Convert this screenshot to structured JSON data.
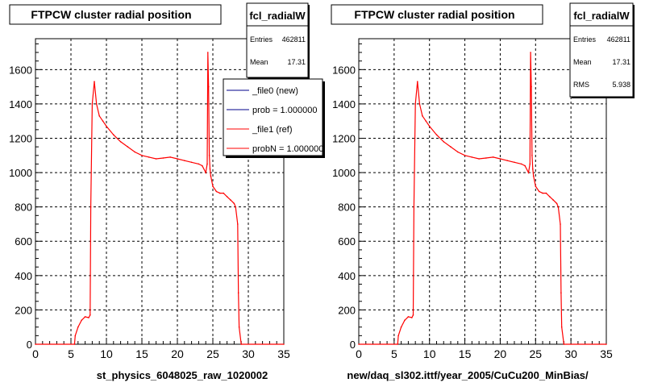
{
  "chart_data": [
    {
      "type": "line",
      "title": "FTPCW cluster radial position",
      "xlabel": "st_physics_6048025_raw_1020002",
      "ylabel": "",
      "xlim": [
        0,
        35
      ],
      "ylim": [
        0,
        1780
      ],
      "xticks": [
        "0",
        "5",
        "10",
        "15",
        "20",
        "25",
        "30",
        "35"
      ],
      "yticks": [
        "0",
        "200",
        "400",
        "600",
        "800",
        "1000",
        "1200",
        "1400",
        "1600"
      ],
      "grid": true,
      "stats": {
        "name": "fcl_radialW",
        "entries_label": "Entries",
        "entries": "462811",
        "mean_label": "Mean",
        "mean": "17.31"
      },
      "legend": {
        "placement": "top-right",
        "entries": [
          "_file0 (new)",
          "prob = 1.000000",
          "_file1 (ref)",
          "probN = 1.000000"
        ]
      },
      "series": [
        {
          "color": "#ff0000",
          "x": [
            0,
            5.5,
            5.6,
            6,
            6.5,
            7,
            7.5,
            7.7,
            7.8,
            8,
            8.3,
            8.6,
            9,
            9.5,
            10,
            11,
            12,
            13,
            14,
            15,
            16,
            17,
            18,
            19,
            20,
            21,
            22,
            23,
            23.5,
            24,
            24.2,
            24.3,
            24.4,
            24.5,
            24.6,
            24.7,
            25,
            25.5,
            26,
            26.5,
            27,
            27.5,
            28,
            28.2,
            28.5,
            28.6,
            28.7,
            29,
            35
          ],
          "y": [
            0,
            0,
            50,
            100,
            140,
            160,
            155,
            170,
            800,
            1400,
            1530,
            1400,
            1330,
            1300,
            1270,
            1220,
            1180,
            1150,
            1120,
            1100,
            1090,
            1080,
            1085,
            1090,
            1080,
            1070,
            1060,
            1050,
            1040,
            1000,
            1050,
            1700,
            1500,
            1100,
            1020,
            980,
            920,
            890,
            880,
            880,
            860,
            840,
            820,
            800,
            700,
            300,
            100,
            0,
            0
          ]
        }
      ]
    },
    {
      "type": "line",
      "title": "FTPCW cluster radial position",
      "xlabel": "new/daq_sl302.ittf/year_2005/CuCu200_MinBias/",
      "ylabel": "",
      "xlim": [
        0,
        35
      ],
      "ylim": [
        0,
        1780
      ],
      "xticks": [
        "0",
        "5",
        "10",
        "15",
        "20",
        "25",
        "30",
        "35"
      ],
      "yticks": [
        "0",
        "200",
        "400",
        "600",
        "800",
        "1000",
        "1200",
        "1400",
        "1600"
      ],
      "grid": true,
      "stats": {
        "name": "fcl_radialW",
        "entries_label": "Entries",
        "entries": "462811",
        "mean_label": "Mean",
        "mean": "17.31",
        "rms_label": "RMS",
        "rms": "5.938"
      },
      "series": [
        {
          "color": "#ff0000",
          "x": [
            0,
            5.5,
            5.6,
            6,
            6.5,
            7,
            7.5,
            7.7,
            7.8,
            8,
            8.3,
            8.6,
            9,
            9.5,
            10,
            11,
            12,
            13,
            14,
            15,
            16,
            17,
            18,
            19,
            20,
            21,
            22,
            23,
            23.5,
            24,
            24.2,
            24.3,
            24.4,
            24.5,
            24.6,
            24.7,
            25,
            25.5,
            26,
            26.5,
            27,
            27.5,
            28,
            28.2,
            28.5,
            28.6,
            28.7,
            29,
            35
          ],
          "y": [
            0,
            0,
            50,
            100,
            140,
            160,
            155,
            170,
            800,
            1400,
            1530,
            1400,
            1330,
            1300,
            1270,
            1220,
            1180,
            1150,
            1120,
            1100,
            1090,
            1080,
            1085,
            1090,
            1080,
            1070,
            1060,
            1050,
            1040,
            1000,
            1050,
            1700,
            1500,
            1100,
            1020,
            980,
            920,
            890,
            880,
            880,
            860,
            840,
            820,
            800,
            700,
            300,
            100,
            0,
            0
          ]
        }
      ]
    }
  ]
}
